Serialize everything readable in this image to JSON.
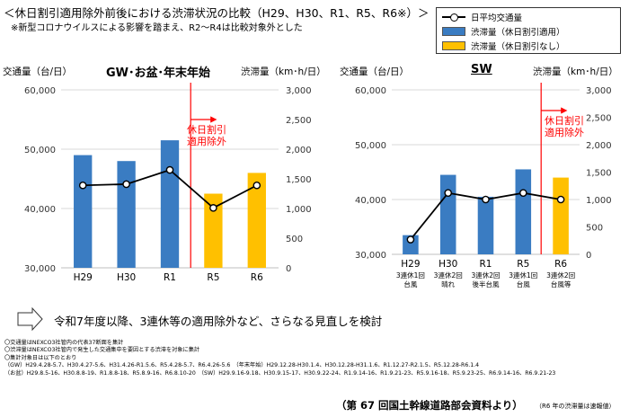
{
  "header": {
    "title": "＜休日割引適用除外前後における渋滞状況の比較（H29、H30、R1、R5、R6※）＞",
    "subtitle": "※新型コロナウイルスによる影響を踏まえ、R2～R4は比較対象外とした"
  },
  "legend": {
    "items": [
      {
        "label": "日平均交通量",
        "kind": "line"
      },
      {
        "label": "渋滞量（休日割引適用）",
        "kind": "bar",
        "color": "#3a7cc2"
      },
      {
        "label": "渋滞量（休日割引なし）",
        "kind": "bar",
        "color": "#ffc000"
      }
    ]
  },
  "colors": {
    "bar_applied": "#3a7cc2",
    "bar_none": "#ffc000",
    "exclusion_line": "#ff0000",
    "line": "#000000"
  },
  "chart_data": [
    {
      "type": "bar",
      "title": "GW･お盆･年末年始",
      "left_axis_unit": "交通量（台/日）",
      "right_axis_unit": "渋滞量（km･h/日）",
      "categories": [
        "H29",
        "H30",
        "R1",
        "R5",
        "R6"
      ],
      "bar_status": [
        "applied",
        "applied",
        "applied",
        "none",
        "none"
      ],
      "congestion_values": [
        1900,
        1800,
        2150,
        1250,
        1600
      ],
      "traffic_values": [
        43900,
        44100,
        46500,
        40100,
        43900
      ],
      "left_ylim": [
        30000,
        60000
      ],
      "left_ticks": [
        "30,000",
        "40,000",
        "50,000",
        "60,000"
      ],
      "right_ylim": [
        0,
        3000
      ],
      "right_ticks": [
        "0",
        "500",
        "1,000",
        "1,500",
        "2,000",
        "2,500",
        "3,000"
      ],
      "annotation": [
        "休日割引",
        "適用除外"
      ]
    },
    {
      "type": "bar",
      "title": "SW",
      "left_axis_unit": "交通量（台/日）",
      "right_axis_unit": "渋滞量（km･h/日）",
      "categories": [
        "H29",
        "H30",
        "R1",
        "R5",
        "R6"
      ],
      "category_sublabels": [
        [
          "3連休1回",
          "台風"
        ],
        [
          "3連休2回",
          "晴れ"
        ],
        [
          "3連休2回",
          "後半台風"
        ],
        [
          "3連休1回",
          "台風"
        ],
        [
          "3連休2回",
          "台風等"
        ]
      ],
      "bar_status": [
        "applied",
        "applied",
        "applied",
        "applied",
        "none"
      ],
      "congestion_values": [
        350,
        1450,
        1050,
        1550,
        1400
      ],
      "traffic_values": [
        32700,
        41200,
        40000,
        41200,
        40000
      ],
      "left_ylim": [
        30000,
        60000
      ],
      "left_ticks": [
        "30,000",
        "40,000",
        "50,000",
        "60,000"
      ],
      "right_ylim": [
        0,
        3000
      ],
      "right_ticks": [
        "0",
        "500",
        "1,000",
        "1,500",
        "2,000",
        "2,500",
        "3,000"
      ],
      "annotation": [
        "休日割引",
        "適用除外"
      ]
    }
  ],
  "conclusion": "令和7年度以降、3連休等の適用除外など、さらなる見直しを検討",
  "notes": [
    "〇交通量はNEXCO3社管内の代表37断面を集計",
    "〇渋滞量はNEXCO3社管内で発生した交通集中を要因とする渋滞を対象に集計",
    "〇集計対象日は以下のとおり",
    "（GW）H29.4.28-5.7、H30.4.27-5.6、H31.4.26-R1.5.6、R5.4.28-5.7、R6.4.26-5.6　（年末年始）H29.12.28-H30.1.4、H30.12.28-H31.1.6、R1.12.27-R2.1.5、R5.12.28-R6.1.4",
    "（お盆）H29.8.5-16、H30.8.8-19、R1.8.8-18、R5.8.9-16、R6.8.10-20　（SW）H29.9.16-9.18、H30.9.15-17、H30.9.22-24、R1.9.14-16、R1.9.21-23、R5.9.16-18、R5.9.23-25、R6.9.14-16、R6.9.21-23"
  ],
  "source": "（第 67 回国土幹線道路部会資料より）",
  "source_note": "（R6 年の渋滞量は速報値）"
}
